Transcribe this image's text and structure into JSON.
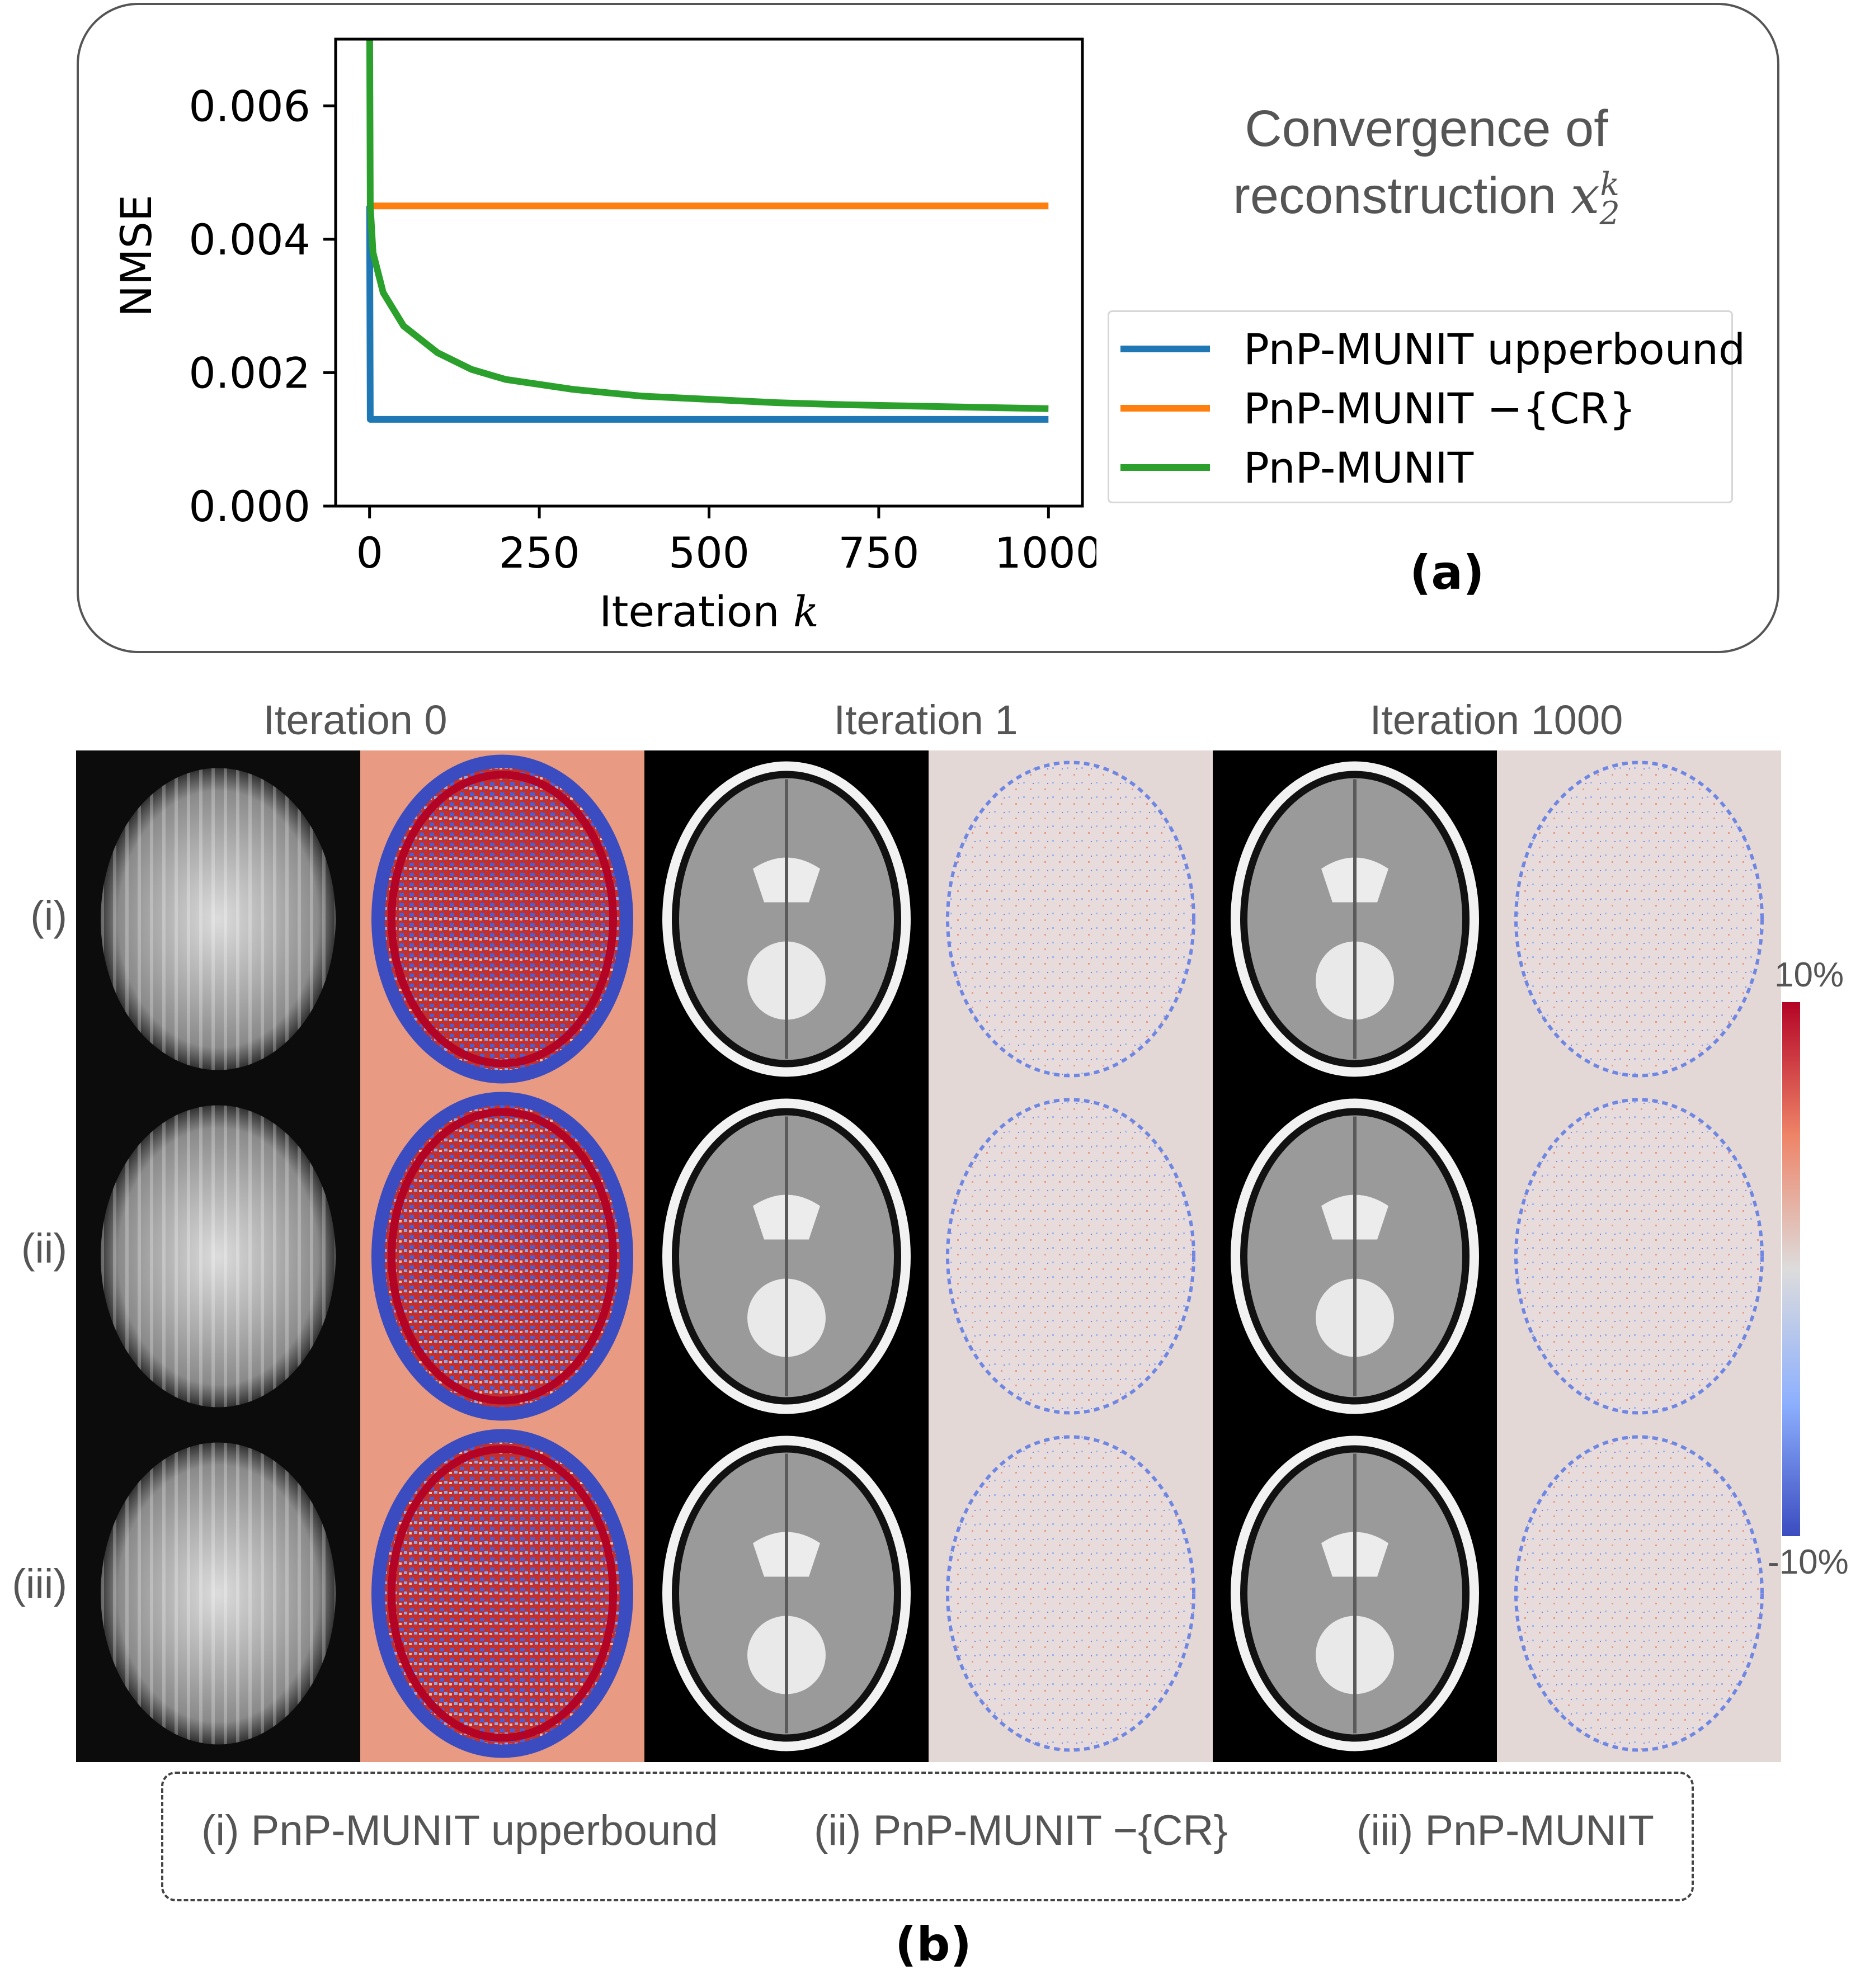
{
  "panel_a": {
    "title_line1": "Convergence of",
    "title_line2": "reconstruction",
    "title_symbol": "x",
    "title_sub": "2",
    "title_sup": "k",
    "label": "(a)"
  },
  "panel_b": {
    "label": "(b)",
    "column_headers": [
      "Iteration 0",
      "Iteration 1",
      "Iteration 1000"
    ],
    "row_labels": [
      "(i)",
      "(ii)",
      "(iii)"
    ],
    "colorbar": {
      "max_label": "10%",
      "min_label": "-10%"
    },
    "legend": [
      "(i) PnP-MUNIT upperbound",
      "(ii) PnP-MUNIT −{CR}",
      "(iii) PnP-MUNIT"
    ]
  },
  "chart_data": {
    "type": "line",
    "xlabel": "Iteration",
    "xlabel_symbol": "k",
    "ylabel": "NMSE",
    "xlim": [
      -50,
      1050
    ],
    "ylim": [
      0.0,
      0.007
    ],
    "xticks": [
      0,
      250,
      500,
      750,
      1000
    ],
    "xtick_labels": [
      "0",
      "250",
      "500",
      "750",
      "1000"
    ],
    "yticks": [
      0.0,
      0.002,
      0.004,
      0.006
    ],
    "ytick_labels": [
      "0.000",
      "0.002",
      "0.004",
      "0.006"
    ],
    "legend_position": "right",
    "series": [
      {
        "name": "PnP-MUNIT upperbound",
        "color": "#1f77b4",
        "x": [
          0,
          1,
          1000
        ],
        "y": [
          0.0045,
          0.0013,
          0.0013
        ]
      },
      {
        "name": "PnP-MUNIT −{CR}",
        "color": "#ff7f0e",
        "x": [
          0,
          1,
          1000
        ],
        "y": [
          0.0045,
          0.0045,
          0.0045
        ]
      },
      {
        "name": "PnP-MUNIT",
        "color": "#2ca02c",
        "x": [
          0,
          1,
          5,
          20,
          50,
          100,
          150,
          200,
          300,
          400,
          500,
          600,
          700,
          800,
          900,
          1000
        ],
        "y": [
          0.0075,
          0.0045,
          0.0038,
          0.0032,
          0.0027,
          0.0023,
          0.00205,
          0.0019,
          0.00175,
          0.00165,
          0.0016,
          0.00155,
          0.00152,
          0.0015,
          0.00148,
          0.00146
        ]
      }
    ]
  }
}
